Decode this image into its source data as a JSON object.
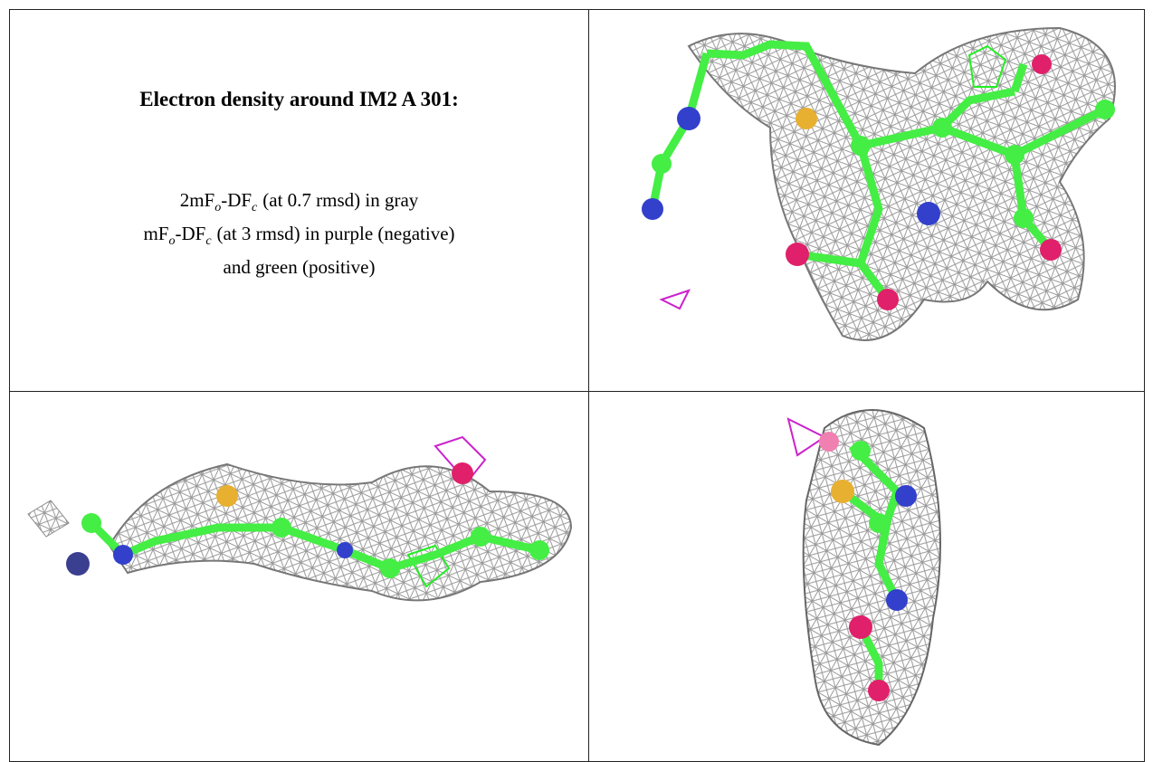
{
  "panel": {
    "title": "Electron density around IM2 A 301:",
    "lines": [
      [
        "2mF",
        "o",
        "-DF",
        "c",
        "(at 0.7 rmsd) in gray"
      ],
      [
        "mF",
        "o",
        "-DF",
        "c",
        "(at 3 rmsd) in purple (negative)"
      ],
      [
        "and green (positive)"
      ]
    ]
  }
}
